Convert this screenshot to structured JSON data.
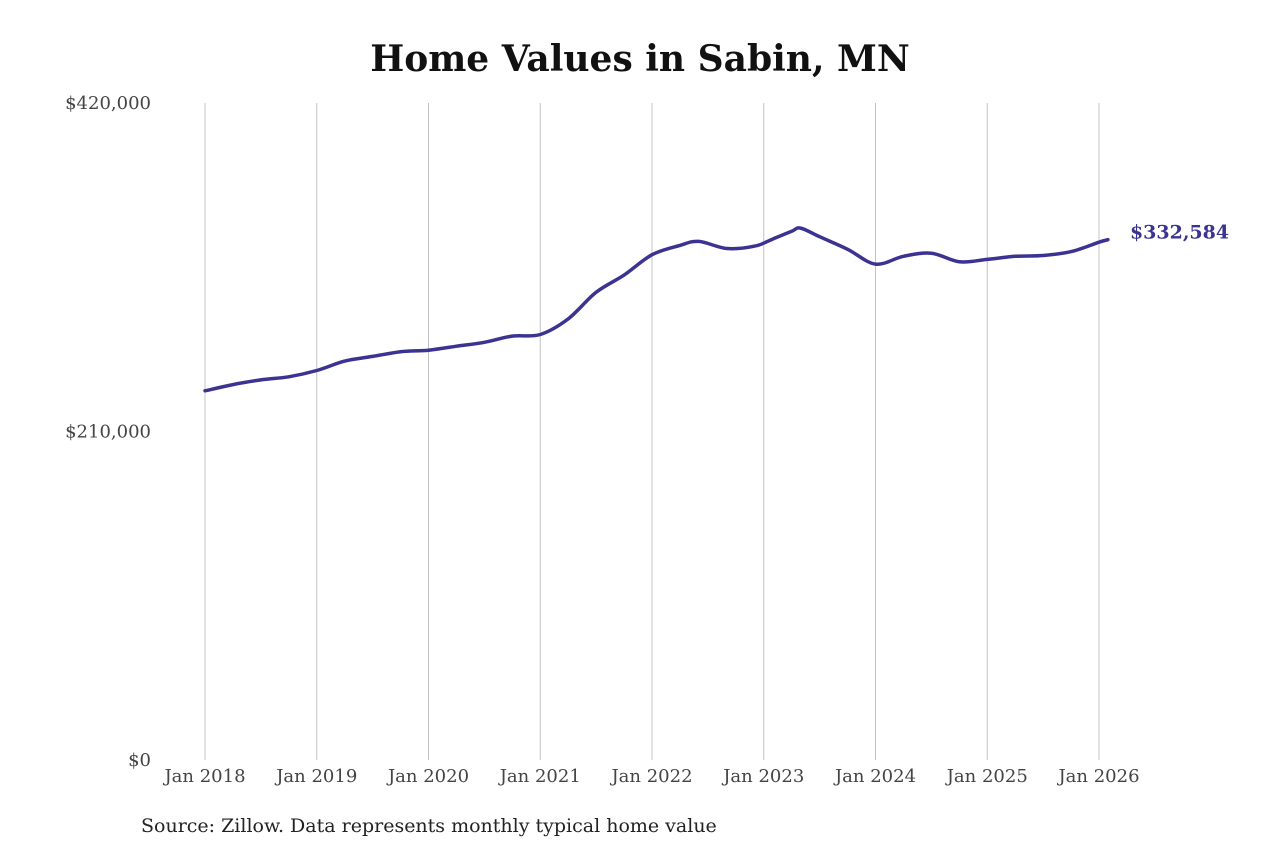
{
  "chart_data": {
    "type": "line",
    "title": "Home Values in Sabin, MN",
    "xlabel": "",
    "ylabel": "",
    "ylim": [
      0,
      420000
    ],
    "y_ticks": [
      "$420,000",
      "$210,000",
      "$0"
    ],
    "y_tick_values": [
      420000,
      210000,
      0
    ],
    "x_ticks": [
      "Jan 2018",
      "Jan 2019",
      "Jan 2020",
      "Jan 2021",
      "Jan 2022",
      "Jan 2023",
      "Jan 2024",
      "Jan 2025",
      "Jan 2026"
    ],
    "x_tick_values": [
      2018,
      2019,
      2020,
      2021,
      2022,
      2023,
      2024,
      2025,
      2026
    ],
    "grid": "vertical",
    "line_color": "#3a3391",
    "end_label": "$332,584",
    "series": [
      {
        "x": [
          2018.0,
          2018.25,
          2018.5,
          2018.75,
          2019.0,
          2019.25,
          2019.5,
          2019.75,
          2020.0,
          2020.25,
          2020.5,
          2020.75,
          2021.0,
          2021.25,
          2021.5,
          2021.75,
          2022.0,
          2022.25,
          2022.42,
          2022.67,
          2022.92,
          2023.08,
          2023.25,
          2023.33,
          2023.5,
          2023.75,
          2024.0,
          2024.25,
          2024.5,
          2024.75,
          2025.0,
          2025.25,
          2025.5,
          2025.75,
          2026.0,
          2026.08
        ],
        "values": [
          236000,
          240000,
          243000,
          245000,
          249000,
          255000,
          258000,
          261000,
          262000,
          264500,
          267000,
          271000,
          272000,
          282000,
          299000,
          310000,
          323000,
          329000,
          331500,
          327000,
          328500,
          333000,
          338000,
          340000,
          334500,
          326500,
          317000,
          322000,
          324000,
          318500,
          320000,
          322000,
          322500,
          325000,
          331000,
          332584
        ]
      }
    ]
  },
  "footer": {
    "source": "Source: Zillow. Data represents monthly typical home value"
  }
}
